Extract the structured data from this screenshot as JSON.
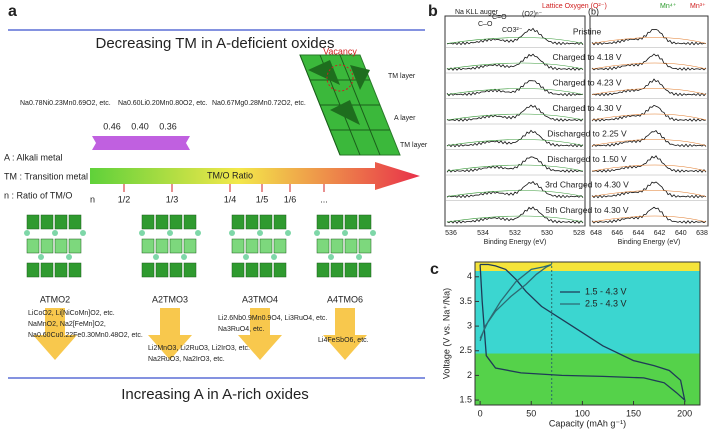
{
  "panel_a": {
    "label": "a",
    "top_title": "Decreasing TM in A-deficient oxides",
    "formulas": [
      "Na0.78Ni0.23Mn0.69O2, etc.",
      "Na0.60Li0.20Mn0.80O2, etc.",
      "Na0.67Mg0.28Mn0.72O2, etc."
    ],
    "ratios": [
      "0.46",
      "0.40",
      "0.36"
    ],
    "vacancy": "Vacancy",
    "layers": [
      "TM layer",
      "A layer",
      "TM layer"
    ],
    "legend": [
      "A : Alkali metal",
      "TM : Transition metal",
      "n : Ratio of TM/O"
    ],
    "arrow_label": "TM/O Ratio",
    "n_label": "n",
    "n_values": [
      "1/2",
      "1/3",
      "1/4",
      "1/5",
      "1/6",
      "..."
    ],
    "structures": [
      {
        "name": "ATMO2",
        "examples": [
          "LiCoO2, Li[NiCoMn]O2, etc.",
          "NaMnO2, Na2[FeMn]O2,",
          "Na0.60Cu0.22Fe0.30Mn0.48O2, etc."
        ]
      },
      {
        "name": "A2TMO3",
        "examples": [
          "Li2MnO3, Li2RuO3, Li2IrO3, etc.",
          "Na2RuO3, Na2IrO3, etc."
        ]
      },
      {
        "name": "A3TMO4",
        "examples": [
          "Li2.6Nb0.9Mn0.9O4, Li3RuO4, etc.",
          "Na3RuO4, etc."
        ]
      },
      {
        "name": "A4TMO6",
        "examples": [
          "Li4FeSbO6, etc."
        ]
      }
    ],
    "bottom_title": "Increasing A in A-rich oxides"
  },
  "panel_b": {
    "label": "b",
    "sub_label": "(b)",
    "peaks_left": [
      "Na KLL auger",
      "C–O",
      "C=O",
      "CO3²⁻",
      "(O2)ⁿ⁻",
      "Lattice Oxygen (O²⁻)"
    ],
    "peaks_right": [
      "Mn⁴⁺",
      "Mn³⁺"
    ],
    "rows": [
      "Pristine",
      "Charged to 4.18 V",
      "Charged to 4.23 V",
      "Charged to 4.30 V",
      "Discharged to 2.25 V",
      "Discharged to 1.50 V",
      "3rd Charged to 4.30 V",
      "5th Charged to 4.30 V"
    ],
    "ticks_left": [
      "536",
      "534",
      "532",
      "530",
      "528"
    ],
    "ticks_right": [
      "648",
      "646",
      "644",
      "642",
      "640",
      "638"
    ],
    "xlabel_left": "Binding Energy (eV)",
    "xlabel_right": "Binding Energy (eV)"
  },
  "chart_data": {
    "type": "line",
    "label": "c",
    "xlabel": "Capacity (mAh g⁻¹)",
    "ylabel": "Voltage (V vs. Na⁺/Na)",
    "xlim": [
      -5,
      215
    ],
    "ylim": [
      1.4,
      4.3
    ],
    "xticks": [
      0,
      50,
      100,
      150,
      200
    ],
    "yticks": [
      1.5,
      2.0,
      2.5,
      3.0,
      3.5,
      4.0
    ],
    "series": [
      {
        "name": "1.5 - 4.3 V",
        "color": "#1f3b57",
        "x": [
          0,
          2,
          6,
          15,
          40,
          80,
          120,
          160,
          180,
          192,
          200,
          196,
          185,
          170,
          150,
          120,
          90,
          60,
          45,
          35,
          25,
          15,
          8,
          3,
          0
        ],
        "values": [
          4.25,
          3.5,
          2.4,
          2.15,
          2.05,
          2.0,
          1.98,
          1.95,
          1.85,
          1.65,
          1.5,
          1.9,
          2.1,
          2.2,
          2.3,
          2.6,
          3.0,
          3.4,
          3.7,
          3.95,
          4.15,
          4.22,
          4.25,
          4.25,
          4.25
        ]
      },
      {
        "name": "2.5 - 4.3 V",
        "color": "#2d6a73",
        "x": [
          0,
          5,
          15,
          30,
          45,
          55,
          65,
          70,
          62,
          50,
          35,
          20,
          8,
          0
        ],
        "values": [
          2.7,
          3.0,
          3.3,
          3.6,
          3.85,
          4.05,
          4.2,
          4.25,
          4.2,
          4.15,
          3.9,
          3.5,
          3.1,
          2.75
        ]
      }
    ]
  }
}
